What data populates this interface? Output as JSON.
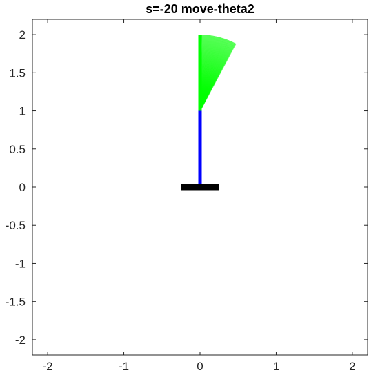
{
  "chart_data": {
    "type": "line",
    "title": "s=-20 move-theta2",
    "xlabel": "",
    "ylabel": "",
    "xlim": [
      -2.2,
      2.2
    ],
    "ylim": [
      -2.2,
      2.2
    ],
    "grid": false,
    "x_ticks": [
      -2,
      -1,
      0,
      1,
      2
    ],
    "x_tick_labels": [
      "-2",
      "-1",
      "0",
      "1",
      "2"
    ],
    "y_ticks": [
      2,
      1.5,
      1,
      0.5,
      0,
      -0.5,
      -1,
      -1.5,
      -2
    ],
    "y_tick_labels": [
      "2",
      "1.5",
      "1",
      "0.5",
      "0",
      "-0.5",
      "-1",
      "-1.5",
      "-2"
    ],
    "base": {
      "x": [
        -0.25,
        0.25
      ],
      "y": [
        0,
        0
      ],
      "color": "#000000"
    },
    "link1": {
      "x": [
        0,
        0
      ],
      "y": [
        0,
        1
      ],
      "color": "#0000ff"
    },
    "link2": {
      "pivot": [
        0,
        1
      ],
      "length": 1,
      "angle_start_deg": 0,
      "angle_end_deg": 28,
      "positions": 50,
      "color": "#00ff00"
    }
  }
}
